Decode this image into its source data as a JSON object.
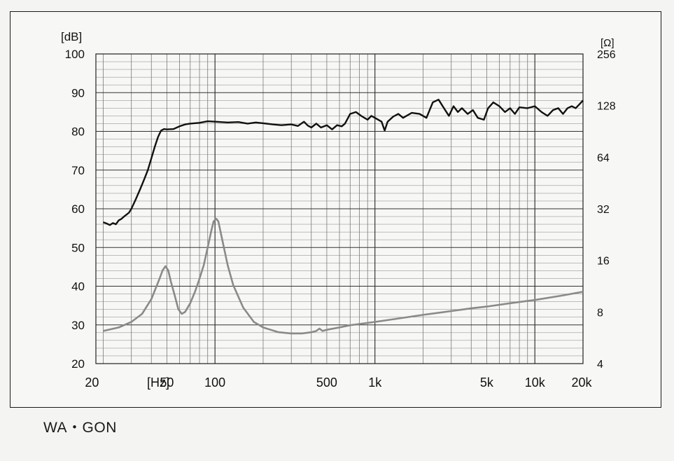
{
  "caption": "WA・GON",
  "chart_data": {
    "type": "line",
    "title": "",
    "y_left_unit": "[dB]",
    "y_right_unit": "[Ω]",
    "x_unit": "[Hz]",
    "x_scale": "log",
    "xlim": [
      18,
      20000
    ],
    "ylim_left": [
      20,
      100
    ],
    "ylim_right": [
      4,
      256
    ],
    "y_right_scale": "log2",
    "grid": true,
    "y_left_ticks": [
      "100",
      "90",
      "80",
      "70",
      "60",
      "50",
      "40",
      "30",
      "20"
    ],
    "y_right_ticks": [
      "256",
      "128",
      "64",
      "32",
      "16",
      "8",
      "4"
    ],
    "x_ticks": [
      {
        "value": 20,
        "label": "20"
      },
      {
        "value": 50,
        "label": "50"
      },
      {
        "value": 100,
        "label": "100"
      },
      {
        "value": 500,
        "label": "500"
      },
      {
        "value": 1000,
        "label": "1k"
      },
      {
        "value": 5000,
        "label": "5k"
      },
      {
        "value": 10000,
        "label": "10k"
      },
      {
        "value": 20000,
        "label": "20k"
      }
    ],
    "series": [
      {
        "axis": "left",
        "color": "#111111",
        "points": [
          [
            20,
            56.5
          ],
          [
            21,
            56.2
          ],
          [
            22,
            55.8
          ],
          [
            23,
            56.3
          ],
          [
            24,
            56.0
          ],
          [
            25,
            57.0
          ],
          [
            26,
            57.4
          ],
          [
            27,
            58.0
          ],
          [
            28,
            58.5
          ],
          [
            29,
            59.0
          ],
          [
            30,
            60.0
          ],
          [
            32,
            62.5
          ],
          [
            34,
            65.0
          ],
          [
            36,
            67.5
          ],
          [
            38,
            70.0
          ],
          [
            40,
            73.0
          ],
          [
            42,
            76.0
          ],
          [
            44,
            78.5
          ],
          [
            46,
            80.2
          ],
          [
            48,
            80.6
          ],
          [
            50,
            80.5
          ],
          [
            55,
            80.6
          ],
          [
            60,
            81.3
          ],
          [
            65,
            81.8
          ],
          [
            70,
            82.0
          ],
          [
            80,
            82.2
          ],
          [
            90,
            82.6
          ],
          [
            100,
            82.5
          ],
          [
            120,
            82.3
          ],
          [
            140,
            82.4
          ],
          [
            160,
            82.0
          ],
          [
            180,
            82.3
          ],
          [
            200,
            82.1
          ],
          [
            230,
            81.8
          ],
          [
            260,
            81.6
          ],
          [
            300,
            81.8
          ],
          [
            330,
            81.4
          ],
          [
            360,
            82.5
          ],
          [
            380,
            81.5
          ],
          [
            400,
            81.0
          ],
          [
            430,
            82.0
          ],
          [
            460,
            81.0
          ],
          [
            500,
            81.6
          ],
          [
            540,
            80.5
          ],
          [
            580,
            81.6
          ],
          [
            620,
            81.3
          ],
          [
            650,
            82.0
          ],
          [
            700,
            84.5
          ],
          [
            760,
            85.0
          ],
          [
            820,
            84.0
          ],
          [
            900,
            83.0
          ],
          [
            950,
            84.0
          ],
          [
            1000,
            83.5
          ],
          [
            1100,
            82.5
          ],
          [
            1150,
            80.2
          ],
          [
            1200,
            82.5
          ],
          [
            1300,
            83.8
          ],
          [
            1400,
            84.5
          ],
          [
            1500,
            83.5
          ],
          [
            1700,
            84.8
          ],
          [
            1900,
            84.5
          ],
          [
            2100,
            83.5
          ],
          [
            2300,
            87.5
          ],
          [
            2500,
            88.2
          ],
          [
            2700,
            86.0
          ],
          [
            2900,
            84.0
          ],
          [
            3100,
            86.5
          ],
          [
            3300,
            85.0
          ],
          [
            3500,
            86.0
          ],
          [
            3800,
            84.5
          ],
          [
            4100,
            85.5
          ],
          [
            4400,
            83.5
          ],
          [
            4800,
            83.0
          ],
          [
            5100,
            86.0
          ],
          [
            5500,
            87.5
          ],
          [
            6000,
            86.5
          ],
          [
            6500,
            85.0
          ],
          [
            7000,
            86.0
          ],
          [
            7500,
            84.5
          ],
          [
            8000,
            86.2
          ],
          [
            9000,
            86.0
          ],
          [
            10000,
            86.5
          ],
          [
            11000,
            85.0
          ],
          [
            12000,
            84.0
          ],
          [
            13000,
            85.5
          ],
          [
            14000,
            86.0
          ],
          [
            15000,
            84.5
          ],
          [
            16000,
            86.0
          ],
          [
            17000,
            86.5
          ],
          [
            18000,
            86.0
          ],
          [
            19000,
            87.0
          ],
          [
            20000,
            88.0
          ]
        ]
      },
      {
        "axis": "right",
        "color": "#8a8a8a",
        "points": [
          [
            20,
            6.2
          ],
          [
            25,
            6.5
          ],
          [
            30,
            7.0
          ],
          [
            35,
            7.8
          ],
          [
            40,
            9.5
          ],
          [
            45,
            12.5
          ],
          [
            47,
            14.0
          ],
          [
            49,
            14.8
          ],
          [
            51,
            14.0
          ],
          [
            53,
            12.0
          ],
          [
            56,
            10.0
          ],
          [
            59,
            8.3
          ],
          [
            62,
            7.8
          ],
          [
            65,
            8.0
          ],
          [
            70,
            9.0
          ],
          [
            75,
            10.5
          ],
          [
            80,
            12.5
          ],
          [
            85,
            15.0
          ],
          [
            90,
            19.0
          ],
          [
            95,
            24.0
          ],
          [
            98,
            27.0
          ],
          [
            102,
            28.0
          ],
          [
            105,
            27.0
          ],
          [
            110,
            22.0
          ],
          [
            120,
            15.0
          ],
          [
            130,
            11.5
          ],
          [
            150,
            8.5
          ],
          [
            175,
            7.0
          ],
          [
            200,
            6.5
          ],
          [
            250,
            6.1
          ],
          [
            300,
            6.0
          ],
          [
            350,
            6.0
          ],
          [
            400,
            6.1
          ],
          [
            430,
            6.2
          ],
          [
            450,
            6.4
          ],
          [
            470,
            6.2
          ],
          [
            500,
            6.3
          ],
          [
            600,
            6.5
          ],
          [
            700,
            6.7
          ],
          [
            1000,
            7.0
          ],
          [
            1500,
            7.4
          ],
          [
            2000,
            7.7
          ],
          [
            3000,
            8.1
          ],
          [
            4000,
            8.4
          ],
          [
            5000,
            8.6
          ],
          [
            7000,
            9.0
          ],
          [
            10000,
            9.4
          ],
          [
            15000,
            10.0
          ],
          [
            20000,
            10.5
          ]
        ]
      }
    ]
  }
}
